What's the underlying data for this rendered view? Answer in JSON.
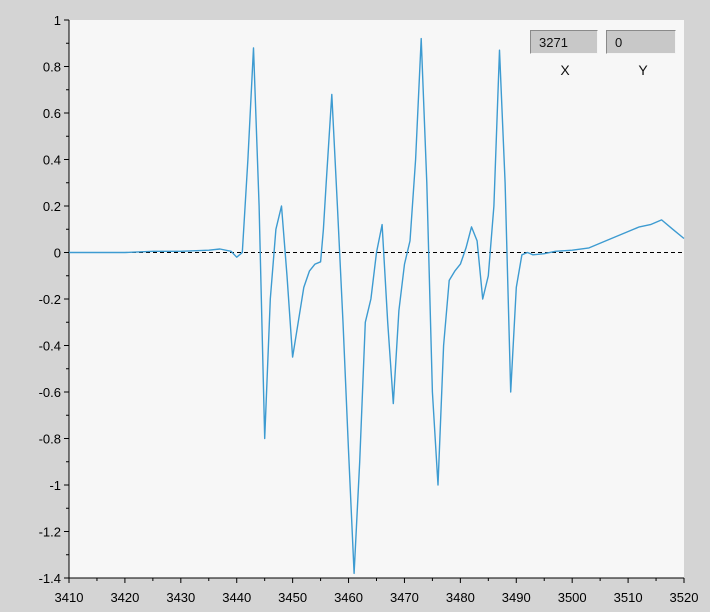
{
  "cursor_readout": {
    "x_value": "3271",
    "y_value": "0",
    "x_label": "X",
    "y_label": "Y"
  },
  "colors": {
    "plot_background": "#f7f7f7",
    "frame": "#d4d4d4",
    "series": "#3d9bd1",
    "zero_line": "#000000"
  },
  "chart_data": {
    "type": "line",
    "title": "",
    "xlabel": "",
    "ylabel": "",
    "xlim": [
      3410,
      3520
    ],
    "ylim": [
      -1.4,
      1
    ],
    "x_ticks": [
      3410,
      3420,
      3430,
      3440,
      3450,
      3460,
      3470,
      3480,
      3490,
      3500,
      3510,
      3520
    ],
    "x_tick_labels": [
      "3410",
      "3420",
      "3430",
      "3440",
      "3450",
      "3460",
      "3470",
      "3480",
      "3490",
      "3500",
      "3510",
      "3520"
    ],
    "y_ticks": [
      1,
      0.8,
      0.6,
      0.4,
      0.2,
      0,
      -0.2,
      -0.4,
      -0.6,
      -0.8,
      -1,
      -1.2,
      -1.4
    ],
    "y_tick_labels": [
      "1",
      "0.8",
      "0.6",
      "0.4",
      "0.2",
      "0",
      "-0.2",
      "-0.4",
      "-0.6",
      "-0.8",
      "-1",
      "-1.2",
      "-1.4"
    ],
    "grid": false,
    "reference_line": {
      "y": 0,
      "style": "dashed"
    },
    "series": [
      {
        "x": [
          3410,
          3415,
          3420,
          3425,
          3430,
          3435,
          3437,
          3439,
          3440,
          3441,
          3442,
          3443,
          3444,
          3445,
          3446,
          3447,
          3448,
          3449,
          3450,
          3451,
          3452,
          3453,
          3454,
          3455,
          3455.5,
          3456,
          3457,
          3458,
          3459,
          3460,
          3461,
          3462,
          3463,
          3464,
          3465,
          3466,
          3467,
          3468,
          3469,
          3470,
          3471,
          3472,
          3473,
          3474,
          3475,
          3476,
          3477,
          3478,
          3479,
          3480,
          3481,
          3482,
          3483,
          3484,
          3485,
          3486,
          3487,
          3488,
          3489,
          3490,
          3491,
          3492,
          3493,
          3495,
          3497,
          3500,
          3503,
          3506,
          3509,
          3512,
          3514,
          3516,
          3518,
          3520
        ],
        "y": [
          0,
          0,
          0,
          0.005,
          0.005,
          0.01,
          0.015,
          0.005,
          -0.02,
          0.0,
          0.4,
          0.88,
          0.2,
          -0.8,
          -0.2,
          0.1,
          0.2,
          -0.1,
          -0.45,
          -0.3,
          -0.15,
          -0.08,
          -0.05,
          -0.04,
          0.1,
          0.3,
          0.68,
          0.2,
          -0.3,
          -0.85,
          -1.38,
          -0.9,
          -0.3,
          -0.2,
          0.0,
          0.12,
          -0.3,
          -0.65,
          -0.25,
          -0.05,
          0.05,
          0.4,
          0.92,
          0.3,
          -0.6,
          -1.0,
          -0.4,
          -0.12,
          -0.08,
          -0.05,
          0.02,
          0.11,
          0.05,
          -0.2,
          -0.1,
          0.2,
          0.87,
          0.3,
          -0.6,
          -0.15,
          -0.01,
          0.0,
          -0.01,
          -0.005,
          0.005,
          0.01,
          0.02,
          0.05,
          0.08,
          0.11,
          0.12,
          0.14,
          0.1,
          0.06
        ]
      }
    ]
  }
}
